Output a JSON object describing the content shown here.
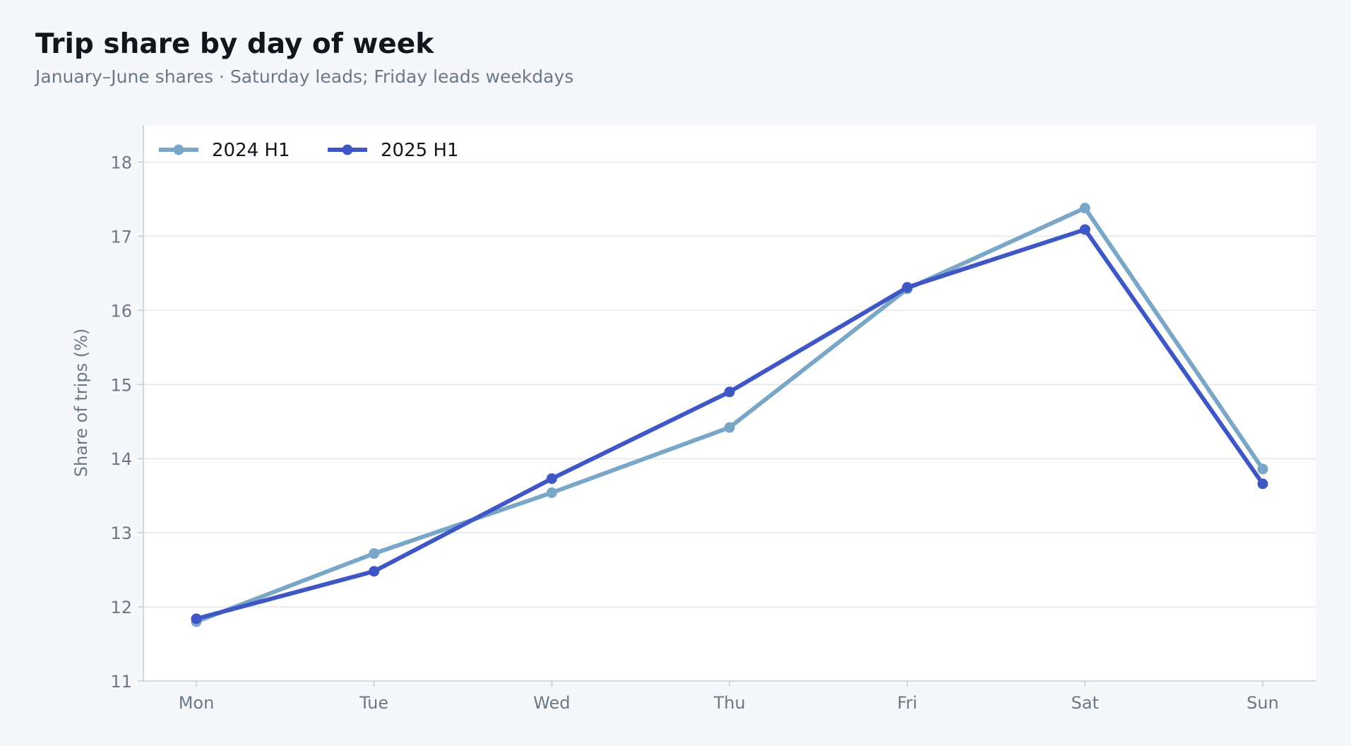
{
  "header": {
    "title": "Trip share by day of week",
    "subtitle": "January–June shares · Saturday leads; Friday leads weekdays"
  },
  "chart_data": {
    "type": "line",
    "categories": [
      "Mon",
      "Tue",
      "Wed",
      "Thu",
      "Fri",
      "Sat",
      "Sun"
    ],
    "series": [
      {
        "name": "2024 H1",
        "color": "#7aa7c7",
        "values": [
          11.8,
          12.72,
          13.54,
          14.42,
          16.29,
          17.38,
          13.86
        ]
      },
      {
        "name": "2025 H1",
        "color": "#3f57c4",
        "values": [
          11.84,
          12.48,
          13.73,
          14.9,
          16.31,
          17.09,
          13.66
        ]
      }
    ],
    "yticks": [
      11,
      12,
      13,
      14,
      15,
      16,
      17,
      18
    ],
    "ylim": [
      11,
      18.5
    ],
    "xlabel": "",
    "ylabel": "Share of trips (%)",
    "grid": "horizontal",
    "legend_position": "top-left"
  }
}
